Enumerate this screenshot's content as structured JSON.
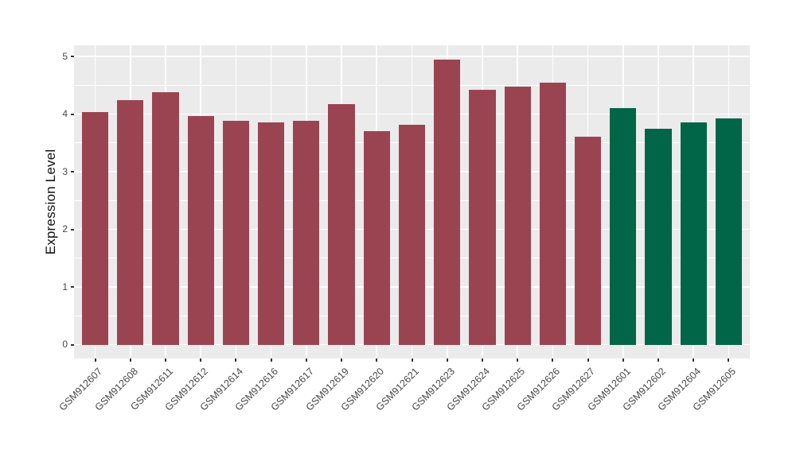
{
  "figure": {
    "kind": "static-r-plot",
    "background_color": "#ffffff"
  },
  "chart_data": {
    "type": "bar",
    "title": "",
    "xlabel": "",
    "ylabel": "Expression Level",
    "ylim": [
      0,
      5
    ],
    "ytick_labels": [
      "0",
      "1",
      "2",
      "3",
      "4",
      "5"
    ],
    "ytick_values": [
      0,
      1,
      2,
      3,
      4,
      5
    ],
    "grid": "on",
    "legend_position": "none",
    "panel_background": "#EBEBEB",
    "grid_color": "#FFFFFF",
    "axis_text_color": "#474747",
    "tick_mark_color": "#333333",
    "categories": [
      "GSM912607",
      "GSM912608",
      "GSM912611",
      "GSM912612",
      "GSM912614",
      "GSM912616",
      "GSM912617",
      "GSM912619",
      "GSM912620",
      "GSM912621",
      "GSM912623",
      "GSM912624",
      "GSM912625",
      "GSM912626",
      "GSM912627",
      "GSM912601",
      "GSM912602",
      "GSM912604",
      "GSM912605"
    ],
    "values": [
      4.03,
      4.24,
      4.38,
      3.96,
      3.88,
      3.86,
      3.88,
      4.17,
      3.7,
      3.81,
      4.94,
      4.42,
      4.47,
      4.54,
      3.61,
      4.11,
      3.75,
      3.86,
      3.92
    ],
    "bar_colors": [
      "#9A4452",
      "#9A4452",
      "#9A4452",
      "#9A4452",
      "#9A4452",
      "#9A4452",
      "#9A4452",
      "#9A4452",
      "#9A4452",
      "#9A4452",
      "#9A4452",
      "#9A4452",
      "#9A4452",
      "#9A4452",
      "#9A4452",
      "#006647",
      "#006647",
      "#006647",
      "#006647"
    ],
    "group_colors": {
      "group1": "#9A4452",
      "group2": "#006647"
    }
  }
}
